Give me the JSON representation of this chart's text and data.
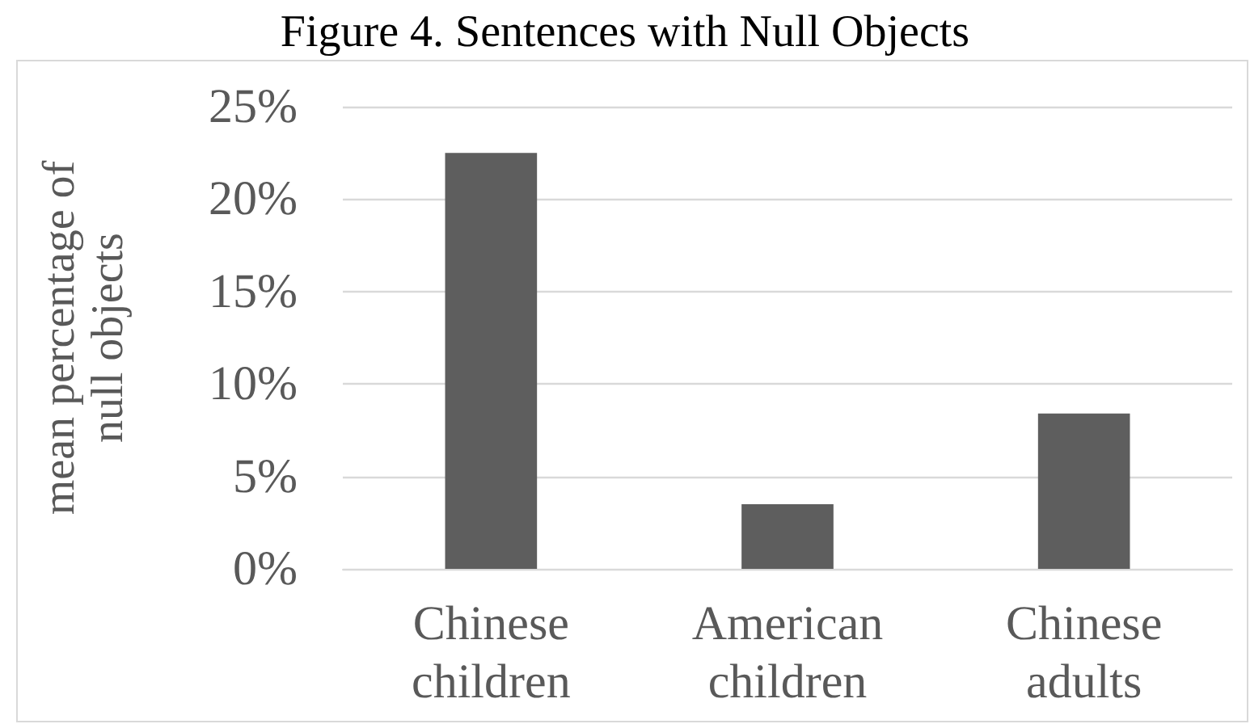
{
  "chart_data": {
    "type": "bar",
    "title": "Figure 4. Sentences with Null Objects",
    "ylabel": "mean percentage of null objects",
    "categories": [
      "Chinese children",
      "American children",
      "Chinese adults"
    ],
    "values": [
      22.5,
      3.5,
      8.4
    ],
    "color": "#5e5e5e",
    "ylim": [
      0,
      25
    ],
    "yticks": [
      {
        "value": 0,
        "label": "0%"
      },
      {
        "value": 5,
        "label": "5%"
      },
      {
        "value": 10,
        "label": "10%"
      },
      {
        "value": 15,
        "label": "15%"
      },
      {
        "value": 20,
        "label": "20%"
      },
      {
        "value": 25,
        "label": "25%"
      }
    ],
    "grid": "y"
  }
}
